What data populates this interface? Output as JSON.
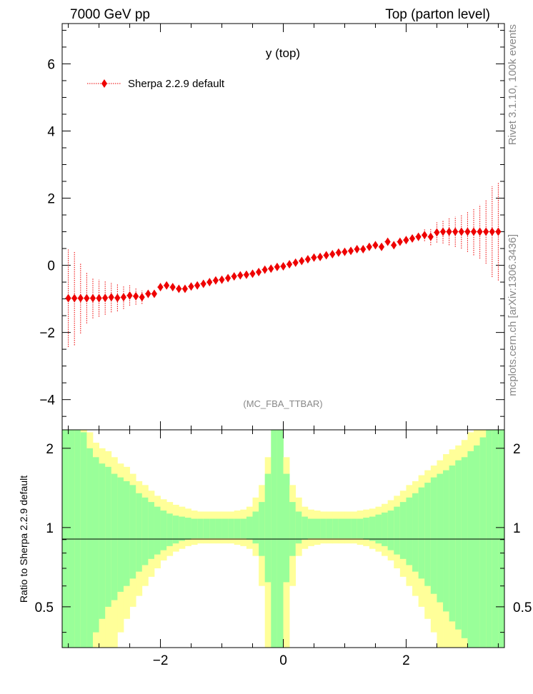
{
  "header": {
    "left": "7000 GeV pp",
    "right": "Top (parton level)"
  },
  "side_labels": {
    "rivet": "Rivet 3.1.10,  100k events",
    "mcplots": "mcplots.cern.ch [arXiv:1306.3436]"
  },
  "colors": {
    "marker": "#ee0000",
    "band_inner": "#99ff99",
    "band_outer": "#ffff99"
  },
  "chart_data": [
    {
      "type": "scatter",
      "title": "y (top)",
      "watermark": "(MC_FBA_TTBAR)",
      "xlim": [
        -3.6,
        3.6
      ],
      "ylim": [
        -4.9,
        7.2
      ],
      "yticks": [
        -4,
        -2,
        0,
        2,
        4,
        6
      ],
      "ytick_labels": [
        "−4",
        "−2",
        "0",
        "2",
        "4",
        "6"
      ],
      "legend_placement": "top-left",
      "series": [
        {
          "name": "Sherpa 2.2.9 default",
          "x": [
            -3.5,
            -3.4,
            -3.3,
            -3.2,
            -3.1,
            -3.0,
            -2.9,
            -2.8,
            -2.7,
            -2.6,
            -2.5,
            -2.4,
            -2.3,
            -2.2,
            -2.1,
            -2.0,
            -1.9,
            -1.8,
            -1.7,
            -1.6,
            -1.5,
            -1.4,
            -1.3,
            -1.2,
            -1.1,
            -1.0,
            -0.9,
            -0.8,
            -0.7,
            -0.6,
            -0.5,
            -0.4,
            -0.3,
            -0.2,
            -0.1,
            0.0,
            0.1,
            0.2,
            0.3,
            0.4,
            0.5,
            0.6,
            0.7,
            0.8,
            0.9,
            1.0,
            1.1,
            1.2,
            1.3,
            1.4,
            1.5,
            1.6,
            1.7,
            1.8,
            1.9,
            2.0,
            2.1,
            2.2,
            2.3,
            2.4,
            2.5,
            2.6,
            2.7,
            2.8,
            2.9,
            3.0,
            3.1,
            3.2,
            3.3,
            3.4,
            3.5
          ],
          "y": [
            -0.98,
            -0.98,
            -0.98,
            -0.98,
            -0.98,
            -0.98,
            -0.97,
            -0.95,
            -0.97,
            -0.95,
            -0.9,
            -0.92,
            -0.95,
            -0.85,
            -0.85,
            -0.65,
            -0.6,
            -0.65,
            -0.7,
            -0.7,
            -0.63,
            -0.6,
            -0.55,
            -0.5,
            -0.45,
            -0.43,
            -0.38,
            -0.33,
            -0.3,
            -0.28,
            -0.25,
            -0.2,
            -0.13,
            -0.1,
            -0.05,
            -0.03,
            0.03,
            0.08,
            0.13,
            0.18,
            0.23,
            0.25,
            0.3,
            0.33,
            0.38,
            0.4,
            0.43,
            0.48,
            0.48,
            0.55,
            0.6,
            0.55,
            0.7,
            0.6,
            0.7,
            0.75,
            0.8,
            0.85,
            0.9,
            0.85,
            0.98,
            1.0,
            1.0,
            1.0,
            1.0,
            1.0,
            1.0,
            1.0,
            1.0,
            1.0,
            1.0
          ],
          "yerr": [
            1.45,
            1.4,
            1.05,
            0.75,
            0.6,
            0.55,
            0.5,
            0.45,
            0.4,
            0.35,
            0.3,
            0.25,
            0.2,
            0.12,
            0.1,
            0.08,
            0.07,
            0.06,
            0.06,
            0.05,
            0.05,
            0.05,
            0.05,
            0.04,
            0.04,
            0.04,
            0.04,
            0.04,
            0.04,
            0.04,
            0.04,
            0.04,
            0.04,
            0.04,
            0.04,
            0.04,
            0.04,
            0.04,
            0.04,
            0.04,
            0.04,
            0.04,
            0.04,
            0.04,
            0.04,
            0.04,
            0.04,
            0.04,
            0.05,
            0.05,
            0.05,
            0.05,
            0.06,
            0.06,
            0.07,
            0.08,
            0.1,
            0.12,
            0.18,
            0.25,
            0.3,
            0.35,
            0.4,
            0.45,
            0.5,
            0.6,
            0.7,
            0.8,
            0.95,
            1.35,
            1.45
          ]
        }
      ]
    },
    {
      "type": "area",
      "ylabel": "Ratio to Sherpa 2.2.9 default",
      "xlim": [
        -3.6,
        3.6
      ],
      "ylim": [
        0.35,
        2.35
      ],
      "xticks": [
        -2,
        0,
        2
      ],
      "xtick_labels": [
        "−2",
        "0",
        "2"
      ],
      "yticks": [
        0.5,
        1,
        2
      ],
      "ytick_labels": [
        "0.5",
        "1",
        "2"
      ],
      "reference_line": 1,
      "bins": {
        "x_edges_start": -3.6,
        "bin_width": 0.1,
        "inner_upper": [
          2.5,
          2.5,
          2.5,
          2.3,
          2.0,
          1.85,
          1.75,
          1.7,
          1.6,
          1.55,
          1.5,
          1.45,
          1.35,
          1.3,
          1.25,
          1.2,
          1.16,
          1.13,
          1.11,
          1.1,
          1.09,
          1.08,
          1.08,
          1.08,
          1.08,
          1.08,
          1.08,
          1.08,
          1.08,
          1.08,
          1.1,
          1.15,
          1.25,
          1.6,
          2.5,
          2.5,
          1.6,
          1.25,
          1.15,
          1.1,
          1.08,
          1.08,
          1.08,
          1.08,
          1.08,
          1.08,
          1.08,
          1.08,
          1.08,
          1.09,
          1.1,
          1.12,
          1.14,
          1.16,
          1.2,
          1.25,
          1.3,
          1.35,
          1.42,
          1.48,
          1.55,
          1.6,
          1.65,
          1.72,
          1.8,
          1.85,
          1.95,
          2.05,
          2.2,
          2.5,
          2.5,
          2.5
        ],
        "outer_upper": [
          2.5,
          2.5,
          2.5,
          2.5,
          2.3,
          2.1,
          2.0,
          1.95,
          1.85,
          1.75,
          1.7,
          1.6,
          1.5,
          1.45,
          1.38,
          1.32,
          1.28,
          1.25,
          1.22,
          1.2,
          1.18,
          1.16,
          1.15,
          1.15,
          1.15,
          1.15,
          1.15,
          1.15,
          1.16,
          1.17,
          1.2,
          1.3,
          1.45,
          1.85,
          2.5,
          2.5,
          1.85,
          1.45,
          1.3,
          1.2,
          1.17,
          1.16,
          1.15,
          1.15,
          1.15,
          1.15,
          1.15,
          1.15,
          1.16,
          1.17,
          1.18,
          1.2,
          1.23,
          1.27,
          1.32,
          1.38,
          1.45,
          1.5,
          1.58,
          1.65,
          1.72,
          1.8,
          1.9,
          1.98,
          2.05,
          2.15,
          2.3,
          2.5,
          2.5,
          2.5,
          2.5,
          2.5
        ],
        "inner_lower": [
          0.3,
          0.3,
          0.3,
          0.3,
          0.35,
          0.4,
          0.45,
          0.5,
          0.53,
          0.57,
          0.6,
          0.64,
          0.68,
          0.72,
          0.76,
          0.79,
          0.82,
          0.85,
          0.87,
          0.89,
          0.9,
          0.91,
          0.91,
          0.91,
          0.91,
          0.91,
          0.91,
          0.91,
          0.91,
          0.91,
          0.9,
          0.87,
          0.78,
          0.62,
          0.3,
          0.3,
          0.62,
          0.78,
          0.87,
          0.9,
          0.91,
          0.91,
          0.91,
          0.91,
          0.91,
          0.91,
          0.91,
          0.91,
          0.91,
          0.9,
          0.89,
          0.87,
          0.85,
          0.82,
          0.79,
          0.76,
          0.72,
          0.68,
          0.64,
          0.6,
          0.56,
          0.52,
          0.48,
          0.44,
          0.41,
          0.38,
          0.35,
          0.3,
          0.3,
          0.3,
          0.3,
          0.3
        ],
        "outer_lower": [
          0.3,
          0.3,
          0.3,
          0.3,
          0.3,
          0.3,
          0.3,
          0.3,
          0.35,
          0.4,
          0.45,
          0.5,
          0.55,
          0.6,
          0.65,
          0.7,
          0.75,
          0.78,
          0.81,
          0.83,
          0.85,
          0.86,
          0.87,
          0.87,
          0.87,
          0.87,
          0.87,
          0.87,
          0.86,
          0.85,
          0.83,
          0.78,
          0.6,
          0.3,
          0.3,
          0.3,
          0.3,
          0.6,
          0.78,
          0.83,
          0.85,
          0.86,
          0.87,
          0.87,
          0.87,
          0.87,
          0.87,
          0.87,
          0.86,
          0.85,
          0.83,
          0.81,
          0.78,
          0.75,
          0.7,
          0.65,
          0.6,
          0.55,
          0.5,
          0.45,
          0.4,
          0.3,
          0.3,
          0.3,
          0.3,
          0.3,
          0.3,
          0.3,
          0.3,
          0.3,
          0.3,
          0.3
        ]
      }
    }
  ]
}
